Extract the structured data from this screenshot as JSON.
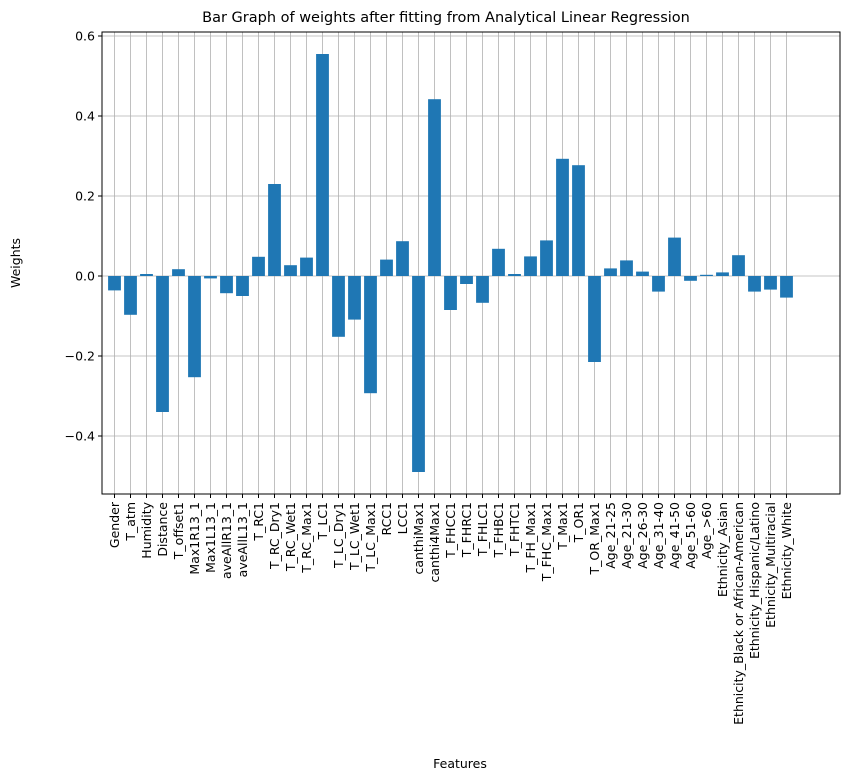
{
  "chart_data": {
    "type": "bar",
    "title": "Bar Graph of weights after fitting from Analytical Linear Regression",
    "xlabel": "Features",
    "ylabel": "Weights",
    "ylim": [
      -0.545,
      0.61
    ],
    "yticks": [
      -0.4,
      -0.2,
      0.0,
      0.2,
      0.4,
      0.6
    ],
    "ytick_labels": [
      "−0.4",
      "−0.2",
      "0.0",
      "0.2",
      "0.4",
      "0.6"
    ],
    "grid": true,
    "bar_color": "#1f77b4",
    "categories": [
      "Gender",
      "T_atm",
      "Humidity",
      "Distance",
      "T_offset1",
      "Max1R13_1",
      "Max1L13_1",
      "aveAllR13_1",
      "aveAllL13_1",
      "T_RC1",
      "T_RC_Dry1",
      "T_RC_Wet1",
      "T_RC_Max1",
      "T_LC1",
      "T_LC_Dry1",
      "T_LC_Wet1",
      "T_LC_Max1",
      "RCC1",
      "LCC1",
      "canthiMax1",
      "canthi4Max1",
      "T_FHCC1",
      "T_FHRC1",
      "T_FHLC1",
      "T_FHBC1",
      "T_FHTC1",
      "T_FH_Max1",
      "T_FHC_Max1",
      "T_Max1",
      "T_OR1",
      "T_OR_Max1",
      "Age_21-25",
      "Age_21-30",
      "Age_26-30",
      "Age_31-40",
      "Age_41-50",
      "Age_51-60",
      "Age_>60",
      "Ethnicity_Asian",
      "Ethnicity_Black or African-American",
      "Ethnicity_Hispanic/Latino",
      "Ethnicity_Multiracial",
      "Ethnicity_White"
    ],
    "values": [
      -0.036,
      -0.097,
      0.005,
      -0.34,
      0.017,
      -0.253,
      -0.006,
      -0.043,
      -0.05,
      0.048,
      0.23,
      0.027,
      0.046,
      0.555,
      -0.152,
      -0.109,
      -0.293,
      0.041,
      0.087,
      -0.49,
      0.442,
      -0.085,
      -0.02,
      -0.067,
      0.068,
      0.005,
      0.049,
      0.089,
      0.293,
      0.277,
      -0.215,
      0.019,
      0.039,
      0.011,
      -0.039,
      0.096,
      -0.012,
      0.003,
      0.009,
      0.052,
      -0.039,
      -0.034,
      -0.054
    ]
  }
}
